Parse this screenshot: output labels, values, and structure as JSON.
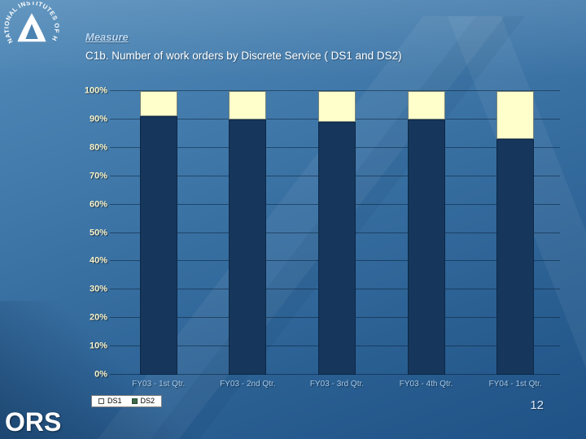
{
  "slide": {
    "measure_label": "Measure",
    "title": "C1b. Number of work orders by Discrete Service ( DS1 and DS2)",
    "footer_brand": "ORS",
    "page_number": "12"
  },
  "logo": {
    "ring_text": "NATIONAL INSTITUTES OF HEALTH"
  },
  "chart_data": {
    "type": "bar",
    "stacked": true,
    "percent": true,
    "title": "",
    "xlabel": "",
    "ylabel": "",
    "categories": [
      "FY03 - 1st Qtr.",
      "FY03 - 2nd Qtr.",
      "FY03 - 3rd Qtr.",
      "FY03 - 4th Qtr.",
      "FY04 - 1st Qtr."
    ],
    "series": [
      {
        "name": "DS1",
        "color": "#16365C",
        "values": [
          91,
          90,
          89,
          90,
          83
        ]
      },
      {
        "name": "DS2",
        "color": "#FFFFCC",
        "values": [
          9,
          10,
          11,
          10,
          17
        ]
      }
    ],
    "ylim": [
      0,
      100
    ],
    "ytick_step": 10,
    "ytick_labels": [
      "0%",
      "10%",
      "20%",
      "30%",
      "40%",
      "50%",
      "60%",
      "70%",
      "80%",
      "90%",
      "100%"
    ],
    "grid": true,
    "legend_position": "bottom-left",
    "legend": [
      {
        "label": "DS1",
        "marker_fill": "#FFFFFF",
        "marker_border": "#4D4D4D"
      },
      {
        "label": "DS2",
        "marker_fill": "#3E6B49",
        "marker_border": "#2B4A34"
      }
    ]
  },
  "colors": {
    "background_top": "#538CBA",
    "background_bottom": "#1F5286",
    "bar_ds1": "#16365C",
    "bar_ds2": "#FFFFCC",
    "y_label_text": "#F8F4CC",
    "x_label_text": "#A6CAEA"
  }
}
